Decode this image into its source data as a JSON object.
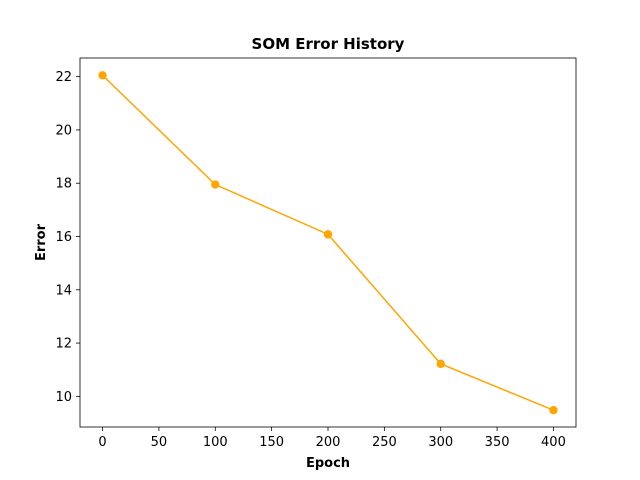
{
  "chart_data": {
    "type": "line",
    "title": "SOM Error History",
    "xlabel": "Epoch",
    "ylabel": "Error",
    "x": [
      0,
      100,
      200,
      300,
      400
    ],
    "series": [
      {
        "values": [
          22.05,
          17.95,
          16.08,
          11.22,
          9.48
        ]
      }
    ],
    "xlim": [
      -20,
      420
    ],
    "ylim": [
      8.85,
      22.7
    ],
    "xticks": [
      0,
      50,
      100,
      150,
      200,
      250,
      300,
      350,
      400
    ],
    "yticks": [
      10,
      12,
      14,
      16,
      18,
      20,
      22
    ],
    "grid": false,
    "marker": "circle",
    "line_color": "#ffa500"
  }
}
